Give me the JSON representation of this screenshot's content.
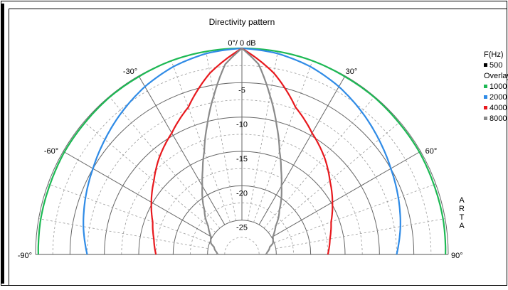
{
  "chart_data": {
    "type": "polar",
    "title": "Directivity pattern",
    "angle_range_deg": [
      -90,
      90
    ],
    "angle_ticks": [
      {
        "deg": -90,
        "label": "-90°"
      },
      {
        "deg": -60,
        "label": "-60°"
      },
      {
        "deg": -30,
        "label": "-30°"
      },
      {
        "deg": 0,
        "label": "0°/ 0 dB"
      },
      {
        "deg": 30,
        "label": "30°"
      },
      {
        "deg": 60,
        "label": "60°"
      },
      {
        "deg": 90,
        "label": "90°"
      }
    ],
    "radial_range_db": [
      -30,
      0
    ],
    "radial_ticks": [
      {
        "db": -5,
        "label": "-5"
      },
      {
        "db": -10,
        "label": "-10"
      },
      {
        "db": -15,
        "label": "-15"
      },
      {
        "db": -20,
        "label": "-20"
      },
      {
        "db": -25,
        "label": "-25"
      }
    ],
    "grid": true,
    "legend_position": "right",
    "legend": {
      "header": "F(Hz)",
      "main": {
        "name": "500",
        "color": "#000000"
      },
      "overlay_label": "Overlay"
    },
    "series": [
      {
        "name": "1000",
        "color": "#1db954",
        "angles": [
          -90,
          -80,
          -70,
          -60,
          -50,
          -40,
          -30,
          -20,
          -10,
          0,
          10,
          20,
          30,
          40,
          50,
          60,
          70,
          80,
          90
        ],
        "values": [
          -0.4,
          -0.3,
          -0.3,
          -0.2,
          -0.2,
          -0.1,
          -0.1,
          0,
          0,
          0,
          0,
          0,
          -0.1,
          -0.1,
          -0.2,
          -0.2,
          -0.3,
          -0.3,
          -0.4
        ]
      },
      {
        "name": "2000",
        "color": "#2f8be6",
        "angles": [
          -90,
          -80,
          -70,
          -60,
          -50,
          -40,
          -30,
          -20,
          -10,
          0,
          10,
          20,
          30,
          40,
          50,
          60,
          70,
          80,
          90
        ],
        "values": [
          -7.5,
          -6.6,
          -5.8,
          -5.0,
          -4.0,
          -2.9,
          -1.8,
          -0.9,
          -0.3,
          0,
          -0.3,
          -0.9,
          -1.8,
          -2.9,
          -4.0,
          -5.0,
          -5.8,
          -6.6,
          -7.5
        ]
      },
      {
        "name": "4000",
        "color": "#e8191e",
        "angles": [
          -90,
          -80,
          -70,
          -60,
          -50,
          -40,
          -30,
          -20,
          -10,
          0,
          10,
          20,
          30,
          40,
          50,
          60,
          70,
          80,
          90
        ],
        "values": [
          -17.5,
          -17.0,
          -16.2,
          -14.8,
          -13.3,
          -11.4,
          -9.6,
          -7.2,
          -3.2,
          0,
          -3.2,
          -7.2,
          -9.6,
          -11.4,
          -13.3,
          -14.8,
          -16.2,
          -17.0,
          -17.5
        ]
      },
      {
        "name": "8000",
        "color": "#8a8a8a",
        "angles": [
          -90,
          -85,
          -80,
          -75,
          -70,
          -65,
          -60,
          -55,
          -50,
          -45,
          -40,
          -35,
          -30,
          -25,
          -20,
          -15,
          -10,
          -5,
          0,
          5,
          10,
          15,
          20,
          25,
          30,
          35,
          40,
          45,
          50,
          55,
          60,
          65,
          70,
          75,
          80,
          85,
          90
        ],
        "values": [
          -26.5,
          -26.3,
          -26.0,
          -25.8,
          -25.2,
          -25.0,
          -24.8,
          -24.2,
          -23.6,
          -22.5,
          -21.5,
          -20.0,
          -18.5,
          -16.5,
          -14.0,
          -10.5,
          -6.5,
          -2.2,
          0,
          -2.2,
          -6.5,
          -10.5,
          -14.0,
          -16.5,
          -18.5,
          -20.0,
          -21.5,
          -22.5,
          -23.6,
          -24.2,
          -24.8,
          -25.0,
          -25.2,
          -25.8,
          -26.0,
          -26.3,
          -26.5
        ]
      }
    ]
  },
  "side_label": [
    "A",
    "R",
    "T",
    "A"
  ]
}
